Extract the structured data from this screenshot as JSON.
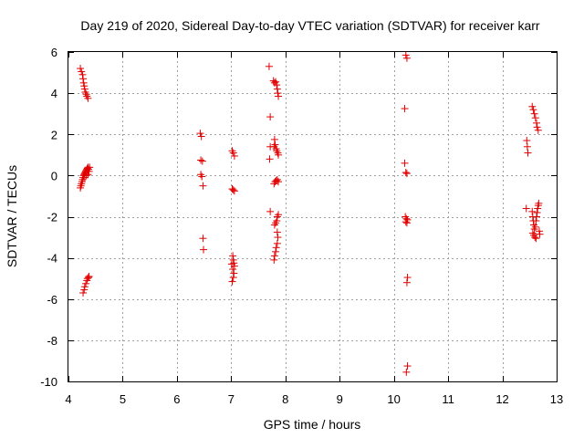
{
  "chart_data": {
    "type": "scatter",
    "title": "Day 219 of 2020, Sidereal Day-to-day VTEC variation (SDTVAR) for receiver karr",
    "xlabel": "GPS time / hours",
    "ylabel": "SDTVAR / TECUs",
    "xlim": [
      4,
      13
    ],
    "ylim": [
      -10,
      6
    ],
    "xticks": [
      4,
      5,
      6,
      7,
      8,
      9,
      10,
      11,
      12,
      13
    ],
    "yticks": [
      -10,
      -8,
      -6,
      -4,
      -2,
      0,
      2,
      4,
      6
    ],
    "grid": true,
    "marker": "+",
    "marker_color": "#e00000",
    "series": [
      {
        "name": "SDTVAR",
        "points": [
          [
            4.22,
            5.2
          ],
          [
            4.24,
            5.05
          ],
          [
            4.26,
            4.9
          ],
          [
            4.27,
            4.7
          ],
          [
            4.28,
            4.5
          ],
          [
            4.29,
            4.35
          ],
          [
            4.3,
            4.2
          ],
          [
            4.31,
            4.05
          ],
          [
            4.33,
            3.95
          ],
          [
            4.34,
            3.85
          ],
          [
            4.36,
            3.75
          ],
          [
            4.22,
            -0.6
          ],
          [
            4.23,
            -0.5
          ],
          [
            4.24,
            -0.4
          ],
          [
            4.25,
            -0.3
          ],
          [
            4.26,
            -0.2
          ],
          [
            4.27,
            -0.1
          ],
          [
            4.28,
            0.0
          ],
          [
            4.29,
            0.05
          ],
          [
            4.3,
            0.1
          ],
          [
            4.31,
            0.15
          ],
          [
            4.32,
            0.2
          ],
          [
            4.33,
            0.25
          ],
          [
            4.34,
            0.3
          ],
          [
            4.35,
            0.35
          ],
          [
            4.36,
            0.4
          ],
          [
            4.37,
            0.3
          ],
          [
            4.38,
            0.2
          ],
          [
            4.39,
            0.4
          ],
          [
            4.3,
            -0.1
          ],
          [
            4.33,
            0.0
          ],
          [
            4.36,
            0.05
          ],
          [
            4.27,
            -5.7
          ],
          [
            4.29,
            -5.55
          ],
          [
            4.3,
            -5.4
          ],
          [
            4.32,
            -5.25
          ],
          [
            4.34,
            -5.1
          ],
          [
            4.35,
            -5.0
          ],
          [
            4.37,
            -4.95
          ],
          [
            4.38,
            -4.9
          ],
          [
            6.43,
            2.05
          ],
          [
            6.45,
            1.9
          ],
          [
            6.44,
            0.75
          ],
          [
            6.47,
            0.7
          ],
          [
            6.44,
            0.05
          ],
          [
            6.46,
            -0.05
          ],
          [
            6.48,
            -0.5
          ],
          [
            6.48,
            -3.05
          ],
          [
            6.49,
            -3.6
          ],
          [
            7.02,
            1.2
          ],
          [
            7.04,
            1.1
          ],
          [
            7.06,
            0.95
          ],
          [
            7.02,
            -0.65
          ],
          [
            7.04,
            -0.7
          ],
          [
            7.06,
            -0.75
          ],
          [
            7.03,
            -3.9
          ],
          [
            7.04,
            -4.1
          ],
          [
            7.05,
            -4.25
          ],
          [
            7.01,
            -4.3
          ],
          [
            7.06,
            -4.4
          ],
          [
            7.03,
            -4.55
          ],
          [
            7.05,
            -4.75
          ],
          [
            7.04,
            -4.95
          ],
          [
            7.02,
            -5.15
          ],
          [
            7.7,
            5.3
          ],
          [
            7.72,
            2.85
          ],
          [
            7.72,
            1.4
          ],
          [
            7.71,
            0.8
          ],
          [
            7.72,
            -1.75
          ],
          [
            7.78,
            4.6
          ],
          [
            7.8,
            4.5
          ],
          [
            7.82,
            4.55
          ],
          [
            7.84,
            4.4
          ],
          [
            7.85,
            4.2
          ],
          [
            7.86,
            4.0
          ],
          [
            7.87,
            3.85
          ],
          [
            7.8,
            1.75
          ],
          [
            7.81,
            1.5
          ],
          [
            7.83,
            1.3
          ],
          [
            7.84,
            1.2
          ],
          [
            7.86,
            1.1
          ],
          [
            7.87,
            1.0
          ],
          [
            7.79,
            1.4
          ],
          [
            7.79,
            -0.4
          ],
          [
            7.81,
            -0.3
          ],
          [
            7.83,
            -0.25
          ],
          [
            7.85,
            -0.2
          ],
          [
            7.87,
            -0.3
          ],
          [
            7.8,
            -2.4
          ],
          [
            7.82,
            -2.3
          ],
          [
            7.84,
            -2.2
          ],
          [
            7.85,
            -2.0
          ],
          [
            7.87,
            -1.9
          ],
          [
            7.85,
            -2.75
          ],
          [
            7.86,
            -3.0
          ],
          [
            7.85,
            -3.3
          ],
          [
            7.83,
            -3.5
          ],
          [
            7.82,
            -3.7
          ],
          [
            7.8,
            -3.9
          ],
          [
            7.79,
            -4.1
          ],
          [
            10.22,
            5.85
          ],
          [
            10.24,
            5.7
          ],
          [
            10.2,
            3.25
          ],
          [
            10.2,
            0.6
          ],
          [
            10.22,
            0.15
          ],
          [
            10.24,
            0.1
          ],
          [
            10.21,
            -2.0
          ],
          [
            10.23,
            -2.1
          ],
          [
            10.25,
            -2.15
          ],
          [
            10.22,
            -2.25
          ],
          [
            10.24,
            -2.3
          ],
          [
            10.25,
            -4.95
          ],
          [
            10.24,
            -5.2
          ],
          [
            10.25,
            -9.25
          ],
          [
            10.23,
            -9.55
          ],
          [
            12.45,
            1.7
          ],
          [
            12.46,
            1.4
          ],
          [
            12.47,
            1.1
          ],
          [
            12.44,
            -1.6
          ],
          [
            12.55,
            3.35
          ],
          [
            12.57,
            3.2
          ],
          [
            12.59,
            3.0
          ],
          [
            12.61,
            2.8
          ],
          [
            12.63,
            2.55
          ],
          [
            12.64,
            2.35
          ],
          [
            12.66,
            2.2
          ],
          [
            12.55,
            -1.75
          ],
          [
            12.56,
            -2.0
          ],
          [
            12.57,
            -2.2
          ],
          [
            12.58,
            -2.4
          ],
          [
            12.59,
            -2.6
          ],
          [
            12.56,
            -2.8
          ],
          [
            12.58,
            -2.9
          ],
          [
            12.6,
            -3.0
          ],
          [
            12.62,
            -3.05
          ],
          [
            12.61,
            -2.5
          ],
          [
            12.62,
            -2.2
          ],
          [
            12.63,
            -2.0
          ],
          [
            12.64,
            -1.8
          ],
          [
            12.65,
            -1.6
          ],
          [
            12.66,
            -1.45
          ],
          [
            12.67,
            -1.35
          ],
          [
            12.68,
            -2.7
          ],
          [
            12.69,
            -2.85
          ]
        ]
      }
    ]
  }
}
